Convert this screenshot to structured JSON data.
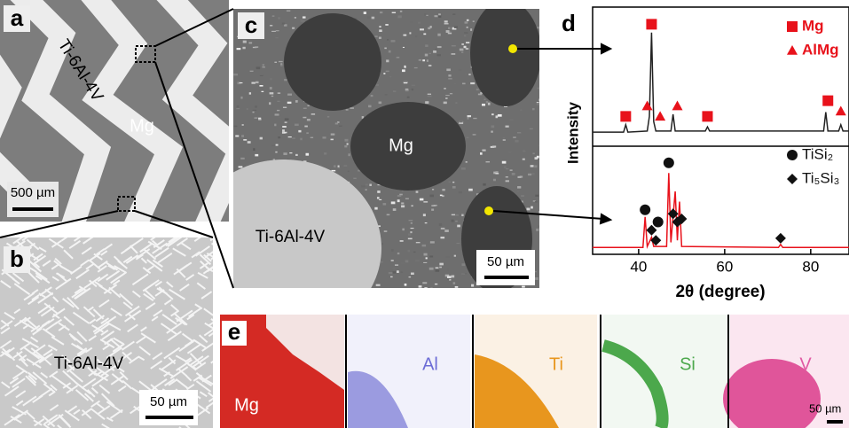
{
  "panels": {
    "a": {
      "label": "a",
      "material": "Ti-6Al-4V",
      "matrix": "Mg",
      "scale_bar": "500 µm"
    },
    "b": {
      "label": "b",
      "material": "Ti-6Al-4V",
      "scale_bar": "50 µm"
    },
    "c": {
      "label": "c",
      "matrix": "Mg",
      "material": "Ti-6Al-4V",
      "scale_bar": "50 µm"
    },
    "d": {
      "label": "d"
    },
    "e": {
      "label": "e",
      "maps": [
        "Mg",
        "Al",
        "Ti",
        "Si",
        "V"
      ],
      "scale_bar": "50 µm"
    }
  },
  "chart_data": [
    {
      "type": "line",
      "ylabel": "Intensity",
      "xlim": [
        29.3,
        88.9
      ],
      "ylim": [
        0,
        110
      ],
      "curve": {
        "color": "#222222",
        "x": [
          29.3,
          36.5,
          37,
          37.5,
          42,
          42.5,
          43,
          43.5,
          44,
          47.5,
          48,
          48.5,
          55.5,
          56,
          56.5,
          83,
          83.5,
          84,
          86.5,
          87,
          87.5,
          88.9
        ],
        "values": [
          5,
          5,
          12,
          5,
          6,
          20,
          100,
          15,
          6,
          6,
          22,
          6,
          6,
          10,
          6,
          6,
          24,
          6,
          6,
          12,
          6,
          6
        ]
      },
      "series": [
        {
          "name": "Mg",
          "marker": "square",
          "color": "#e8121b",
          "x": [
            37,
            43,
            56,
            84
          ],
          "values": [
            20,
            108,
            20,
            35
          ]
        },
        {
          "name": "AlMg",
          "marker": "triangle",
          "color": "#e8121b",
          "x": [
            42,
            45,
            49,
            87
          ],
          "values": [
            30,
            20,
            30,
            25
          ]
        }
      ]
    },
    {
      "type": "line",
      "xlabel": "2θ (degree)",
      "xlim": [
        29.3,
        88.9
      ],
      "ylim": [
        0,
        100
      ],
      "xticks": [
        40,
        60,
        80
      ],
      "curve": {
        "color": "#e8121b",
        "x": [
          29.3,
          41,
          41.5,
          42,
          43,
          43.5,
          44,
          46.5,
          47,
          47.5,
          48.5,
          49,
          49.5,
          50,
          72.5,
          73,
          73.5,
          88.9
        ],
        "values": [
          5,
          5,
          35,
          6,
          15,
          6,
          6,
          6,
          78,
          10,
          60,
          12,
          50,
          6,
          5,
          8,
          5,
          5
        ]
      },
      "series": [
        {
          "name": "TiSi₂",
          "marker": "circle",
          "color": "#111111",
          "x": [
            41.5,
            44.5,
            47
          ],
          "values": [
            42,
            30,
            88
          ]
        },
        {
          "name": "Ti₅Si₃",
          "marker": "diamond",
          "color": "#111111",
          "x": [
            43,
            44,
            48,
            49,
            50,
            73
          ],
          "values": [
            22,
            12,
            38,
            30,
            33,
            14
          ]
        }
      ]
    }
  ]
}
